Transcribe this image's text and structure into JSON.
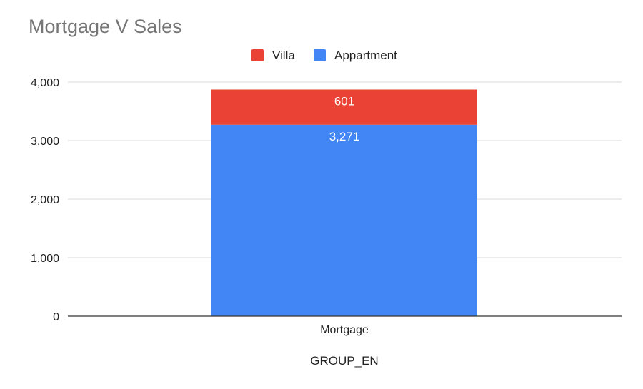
{
  "chart_data": {
    "type": "bar",
    "stacked": true,
    "title": "Mortgage V Sales",
    "xlabel": "GROUP_EN",
    "ylabel": "",
    "categories": [
      "Mortgage"
    ],
    "series": [
      {
        "name": "Appartment",
        "values": [
          3271
        ],
        "color": "#4285f4",
        "data_labels": [
          "3,271"
        ]
      },
      {
        "name": "Villa",
        "values": [
          601
        ],
        "color": "#ea4335",
        "data_labels": [
          "601"
        ]
      }
    ],
    "legend": {
      "position": "top",
      "order": [
        "Villa",
        "Appartment"
      ]
    },
    "ylim": [
      0,
      4000
    ],
    "yticks": [
      0,
      1000,
      2000,
      3000,
      4000
    ],
    "ytick_labels": [
      "0",
      "1,000",
      "2,000",
      "3,000",
      "4,000"
    ],
    "grid": true,
    "colors": {
      "grid": "#d9d9d9",
      "baseline": "#333333",
      "title": "#757575",
      "text": "#222222"
    }
  }
}
